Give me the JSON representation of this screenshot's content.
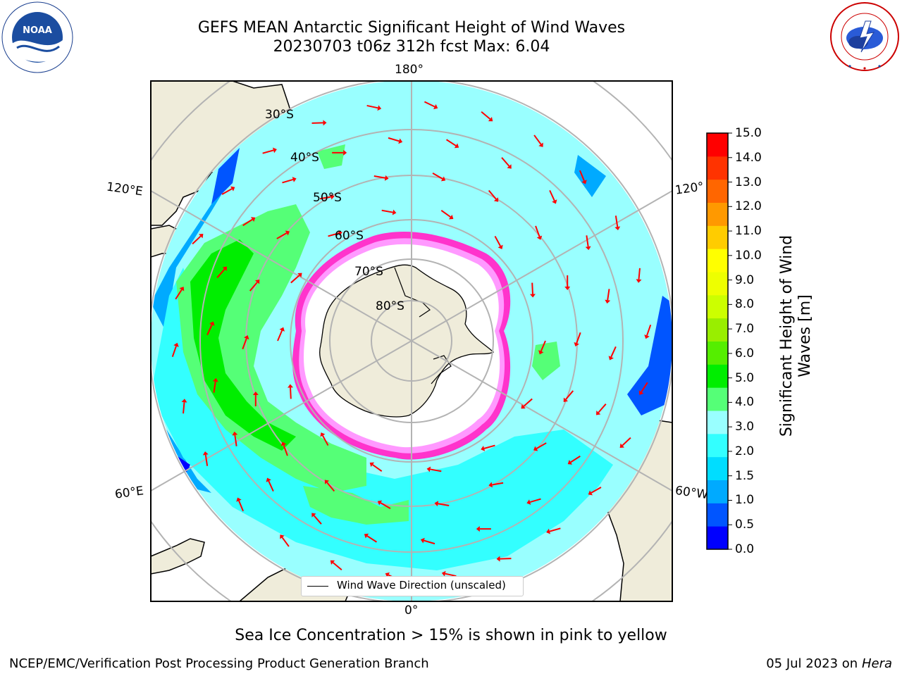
{
  "title": {
    "line1": "GEFS MEAN Antarctic Significant Height of Wind Waves",
    "line2": "20230703 t06z 312h fcst   Max: 6.04"
  },
  "logos": {
    "left": "noaa-logo",
    "right": "national-weather-service-logo"
  },
  "map": {
    "projection": "south-polar-stereographic",
    "longitude_labels": {
      "top": "180°",
      "bottom": "0°",
      "left_upper": "120°E",
      "left_lower": "60°E",
      "right_upper": "120°",
      "right_lower": "60°W"
    },
    "latitude_labels": [
      "30°S",
      "40°S",
      "50°S",
      "60°S",
      "70°S",
      "80°S"
    ],
    "legend": "Wind Wave Direction (unscaled)",
    "arrow_color": "#ff0000",
    "land_color": "#efecda",
    "ice_colors": [
      "#ff33cc",
      "#ff99ff",
      "#ffcc00"
    ]
  },
  "colorbar": {
    "title_line1": "Significant Height of Wind",
    "title_line2": "Waves [m]",
    "tick_labels": [
      "0.0",
      "0.5",
      "1.0",
      "1.5",
      "2.0",
      "3.0",
      "4.0",
      "5.0",
      "6.0",
      "7.0",
      "8.0",
      "9.0",
      "10.0",
      "11.0",
      "12.0",
      "13.0",
      "14.0",
      "15.0"
    ],
    "colors": [
      "#0000ff",
      "#0055ff",
      "#00aaff",
      "#00ddff",
      "#33ffff",
      "#99ffff",
      "#55ff77",
      "#00ee00",
      "#55ee00",
      "#99ee00",
      "#ccff00",
      "#eeff00",
      "#ffff00",
      "#ffcc00",
      "#ff9900",
      "#ff6600",
      "#ff3300",
      "#ff0000"
    ]
  },
  "caption": "Sea Ice Concentration > 15% is shown in pink to yellow",
  "footer": {
    "left": "NCEP/EMC/Verification Post Processing Product Generation Branch",
    "right_date": "05 Jul 2023 on ",
    "right_host": "Hera"
  }
}
